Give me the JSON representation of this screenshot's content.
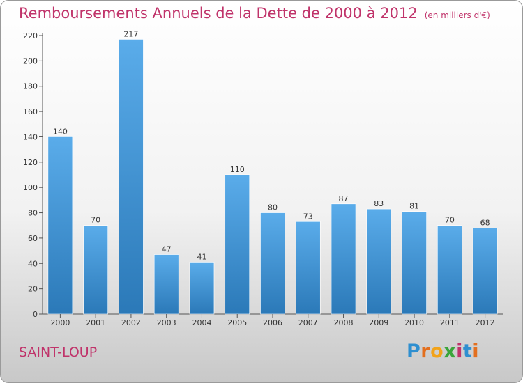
{
  "chart_data": {
    "type": "bar",
    "title": "Remboursements Annuels de la Dette de 2000 à 2012",
    "unit_label": "(en milliers d'€)",
    "categories": [
      "2000",
      "2001",
      "2002",
      "2003",
      "2004",
      "2005",
      "2006",
      "2007",
      "2008",
      "2009",
      "2010",
      "2011",
      "2012"
    ],
    "values": [
      140,
      70,
      217,
      47,
      41,
      110,
      80,
      73,
      87,
      83,
      81,
      70,
      68
    ],
    "ylim": [
      0,
      220
    ],
    "yticks": [
      0,
      20,
      40,
      60,
      80,
      100,
      120,
      140,
      160,
      180,
      200,
      220
    ],
    "xlabel": "",
    "ylabel": "",
    "grid": false,
    "bar_color_top": "#5aacea",
    "bar_color_bottom": "#2b79b8"
  },
  "footer": {
    "city": "SAINT-LOUP",
    "logo_letters": [
      {
        "ch": "P",
        "color": "#2e8fd0"
      },
      {
        "ch": "r",
        "color": "#e36f1e"
      },
      {
        "ch": "o",
        "color": "#f2a31a"
      },
      {
        "ch": "x",
        "color": "#3aa53a"
      },
      {
        "ch": "i",
        "color": "#c0336a"
      },
      {
        "ch": "t",
        "color": "#2e8fd0"
      },
      {
        "ch": "i",
        "color": "#e36f1e"
      }
    ]
  }
}
